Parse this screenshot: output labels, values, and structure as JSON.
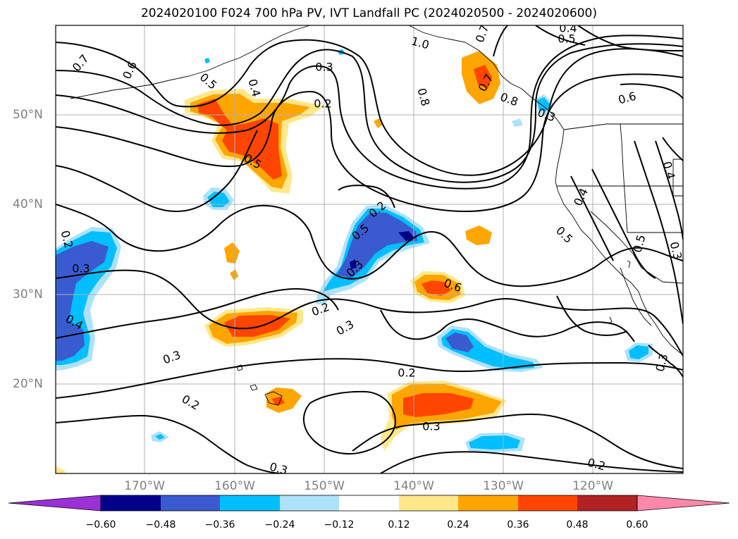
{
  "title": "2024020100 F024 700 hPa PV, IVT Landfall PC (2024020500 - 2024020600)",
  "latitude_labels": [
    "50°N",
    "40°N",
    "30°N",
    "20°N"
  ],
  "longitude_labels": [
    "170°W",
    "160°W",
    "150°W",
    "140°W",
    "130°W",
    "120°W"
  ],
  "colorbar": {
    "colors": [
      "#9b30d6",
      "#00008b",
      "#3a5bd0",
      "#00bfff",
      "#aee2fa",
      "#ffffff",
      "#ffe88a",
      "#ffa500",
      "#ff4500",
      "#b22222",
      "#ff88aa"
    ],
    "tick_labels": [
      "−0.60",
      "−0.48",
      "−0.36",
      "−0.24",
      "−0.12",
      "0.12",
      "0.24",
      "0.36",
      "0.48",
      "0.60"
    ]
  },
  "contour_labels": [
    "0.7",
    "0.6",
    "0.5",
    "0.4",
    "0.3",
    "0.2",
    "1.0",
    "0.7",
    "0.8",
    "0.7",
    "0.5",
    "0.8",
    "0.4",
    "0.6",
    "0.5",
    "0.3",
    "0.2",
    "0.5",
    "0.3",
    "0.6",
    "0.5",
    "0.4",
    "0.3",
    "0.4",
    "0.3",
    "0.4",
    "0.5",
    "0.3",
    "0.2",
    "0.3",
    "0.2",
    "0.2",
    "0.3",
    "0.3",
    "0.3",
    "0.2",
    "0.2"
  ]
}
